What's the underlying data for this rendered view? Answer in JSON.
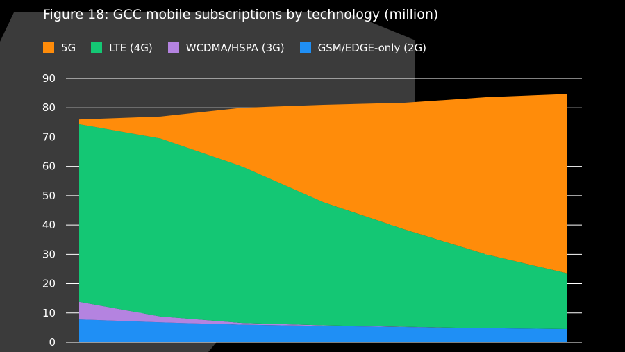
{
  "chart_data": {
    "type": "area",
    "stacked": true,
    "title": "Figure 18: GCC mobile subscriptions by technology (million)",
    "xlabel": "",
    "ylabel": "",
    "ylim": [
      0,
      90
    ],
    "yticks": [
      "0",
      "10",
      "20",
      "30",
      "40",
      "50",
      "60",
      "70",
      "80",
      "90"
    ],
    "grid": true,
    "legend_position": "top-left",
    "x": [
      0,
      1,
      2,
      3,
      4,
      5,
      6
    ],
    "series": [
      {
        "name": "GSM/EDGE-only (2G)",
        "color": "#1f8ff5",
        "values": [
          7.8,
          6.8,
          6.0,
          5.6,
          5.2,
          4.8,
          4.5
        ]
      },
      {
        "name": "WCDMA/HSPA (3G)",
        "color": "#b483e0",
        "values": [
          6.0,
          2.0,
          0.6,
          0.2,
          0.1,
          0.0,
          0.0
        ]
      },
      {
        "name": "LTE (4G)",
        "color": "#14c774",
        "values": [
          60.6,
          60.7,
          53.4,
          42.0,
          33.2,
          25.2,
          19.0
        ]
      },
      {
        "name": "5G",
        "color": "#ff8c0a",
        "values": [
          1.6,
          7.5,
          20.0,
          33.2,
          43.2,
          53.6,
          61.2
        ]
      }
    ]
  }
}
